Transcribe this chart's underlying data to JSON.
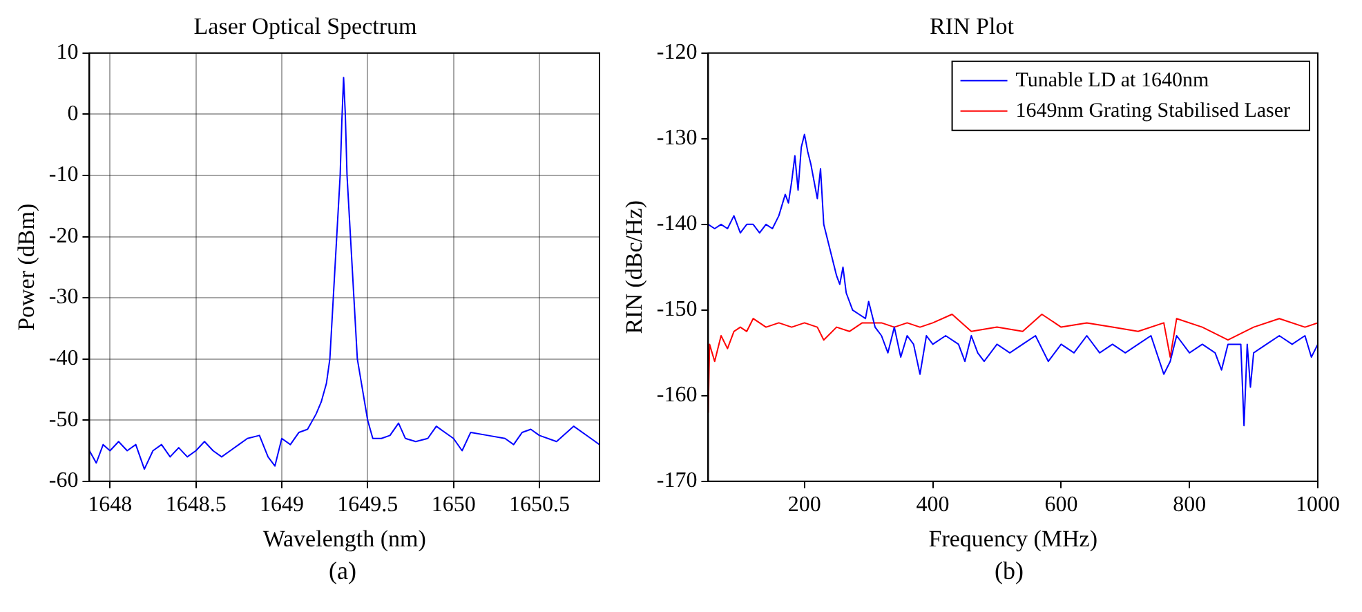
{
  "chart_data": [
    {
      "type": "line",
      "title": "Laser Optical Spectrum",
      "xlabel": "Wavelength (nm)",
      "ylabel": "Power (dBm)",
      "annotations": [
        "(a)"
      ],
      "grid": true,
      "xlim": [
        1647.88,
        1650.85
      ],
      "xticks": [
        1648,
        1648.5,
        1649,
        1649.5,
        1650,
        1650.5
      ],
      "ylim": [
        -60,
        10
      ],
      "yticks": [
        -60,
        -50,
        -40,
        -30,
        -20,
        -10,
        0,
        10
      ],
      "series": [
        {
          "color": "#0000ff",
          "x": [
            1647.88,
            1647.92,
            1647.96,
            1648.0,
            1648.05,
            1648.1,
            1648.15,
            1648.2,
            1648.25,
            1648.3,
            1648.35,
            1648.4,
            1648.45,
            1648.5,
            1648.55,
            1648.6,
            1648.65,
            1648.7,
            1648.75,
            1648.8,
            1648.87,
            1648.92,
            1648.96,
            1649.0,
            1649.05,
            1649.1,
            1649.15,
            1649.2,
            1649.23,
            1649.26,
            1649.28,
            1649.3,
            1649.32,
            1649.34,
            1649.35,
            1649.36,
            1649.37,
            1649.38,
            1649.4,
            1649.42,
            1649.44,
            1649.47,
            1649.5,
            1649.53,
            1649.58,
            1649.63,
            1649.68,
            1649.72,
            1649.78,
            1649.85,
            1649.9,
            1649.95,
            1650.0,
            1650.05,
            1650.1,
            1650.2,
            1650.3,
            1650.35,
            1650.4,
            1650.45,
            1650.5,
            1650.6,
            1650.7,
            1650.8,
            1650.85
          ],
          "values": [
            -55,
            -57,
            -54,
            -55,
            -53.5,
            -55,
            -54,
            -58,
            -55,
            -54,
            -56,
            -54.5,
            -56,
            -55,
            -53.5,
            -55,
            -56,
            -55,
            -54,
            -53,
            -52.5,
            -56,
            -57.5,
            -53,
            -54,
            -52,
            -51.5,
            -49,
            -47,
            -44,
            -40,
            -30,
            -20,
            -10,
            -1,
            6,
            0,
            -10,
            -20,
            -30,
            -40,
            -45,
            -50,
            -53,
            -53,
            -52.5,
            -50.5,
            -53,
            -53.5,
            -53,
            -51,
            -52,
            -53,
            -55,
            -52,
            -52.5,
            -53,
            -54,
            -52,
            -51.5,
            -52.5,
            -53.5,
            -51,
            -53,
            -54
          ]
        }
      ]
    },
    {
      "type": "line",
      "title": "RIN Plot",
      "xlabel": "Frequency (MHz)",
      "ylabel": "RIN (dBc/Hz)",
      "annotations": [
        "(b)"
      ],
      "legend": "top right",
      "xlim": [
        50,
        1000
      ],
      "xticks": [
        200,
        400,
        600,
        800,
        1000
      ],
      "ylim": [
        -170,
        -120
      ],
      "yticks": [
        -170,
        -160,
        -150,
        -140,
        -130,
        -120
      ],
      "series": [
        {
          "name": "Tunable LD at 1640nm",
          "color": "#0000ff",
          "x": [
            50,
            60,
            70,
            80,
            90,
            100,
            110,
            120,
            130,
            140,
            150,
            160,
            170,
            175,
            180,
            185,
            190,
            195,
            200,
            205,
            210,
            215,
            220,
            225,
            230,
            240,
            250,
            255,
            260,
            265,
            275,
            285,
            295,
            300,
            310,
            320,
            330,
            340,
            350,
            360,
            370,
            380,
            390,
            400,
            420,
            440,
            450,
            460,
            470,
            480,
            500,
            520,
            540,
            560,
            580,
            600,
            620,
            640,
            660,
            680,
            700,
            720,
            740,
            760,
            770,
            780,
            800,
            820,
            840,
            850,
            860,
            880,
            885,
            890,
            895,
            900,
            920,
            940,
            960,
            980,
            990,
            1000
          ],
          "values": [
            -140,
            -140.5,
            -140,
            -140.5,
            -139,
            -141,
            -140,
            -140,
            -141,
            -140,
            -140.5,
            -139,
            -136.5,
            -137.5,
            -135,
            -132,
            -136,
            -131,
            -129.5,
            -131.5,
            -133,
            -135,
            -137,
            -133.5,
            -140,
            -143,
            -146,
            -147,
            -145,
            -148,
            -150,
            -150.5,
            -151,
            -149,
            -152,
            -153,
            -155,
            -152,
            -155.5,
            -153,
            -154,
            -157.5,
            -153,
            -154,
            -153,
            -154,
            -156,
            -153,
            -155,
            -156,
            -154,
            -155,
            -154,
            -153,
            -156,
            -154,
            -155,
            -153,
            -155,
            -154,
            -155,
            -154,
            -153,
            -157.5,
            -156,
            -153,
            -155,
            -154,
            -155,
            -157,
            -154,
            -154,
            -163.5,
            -154,
            -159,
            -155,
            -154,
            -153,
            -154,
            -153,
            -155.5,
            -154
          ]
        },
        {
          "name": "1649nm Grating Stabilised Laser",
          "color": "#ff0000",
          "x": [
            50,
            52,
            60,
            70,
            80,
            90,
            100,
            110,
            120,
            140,
            160,
            180,
            200,
            220,
            230,
            250,
            270,
            290,
            300,
            320,
            340,
            360,
            380,
            400,
            430,
            460,
            500,
            540,
            570,
            600,
            640,
            680,
            720,
            760,
            770,
            780,
            820,
            860,
            900,
            940,
            980,
            1000
          ],
          "values": [
            -162,
            -154,
            -156,
            -153,
            -154.5,
            -152.5,
            -152,
            -152.5,
            -151,
            -152,
            -151.5,
            -152,
            -151.5,
            -152,
            -153.5,
            -152,
            -152.5,
            -151.5,
            -151.5,
            -151.5,
            -152,
            -151.5,
            -152,
            -151.5,
            -150.5,
            -152.5,
            -152,
            -152.5,
            -150.5,
            -152,
            -151.5,
            -152,
            -152.5,
            -151.5,
            -155.5,
            -151,
            -152,
            -153.5,
            -152,
            -151,
            -152,
            -151.5
          ]
        }
      ]
    }
  ]
}
